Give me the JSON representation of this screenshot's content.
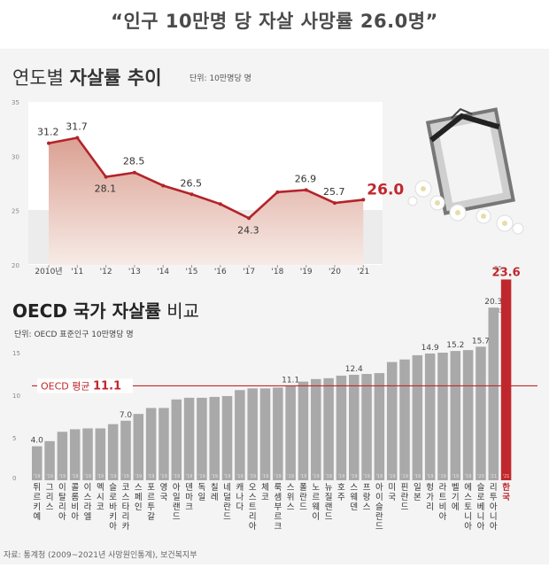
{
  "headline": "“인구 10만명 당 자살 사망률 26.0명”",
  "trend_chart": {
    "title_light": "연도별 ",
    "title_bold": "자살률 추이",
    "unit": "단위: 10만명당 명"
  },
  "oecd_chart": {
    "title_bold": "OECD 국가 자살률",
    "title_light": " 비교",
    "unit": "단위: OECD 표준인구 10만명당 명",
    "avg_label": "OECD 평균",
    "avg_value": "11.1"
  },
  "source": "자료: 통계청 (2009~2021년 사망원인통계), 보건복지부",
  "colors": {
    "highlight": "#c0272d",
    "bar": "#a9a9a9",
    "line": "#b3232a",
    "area_top": "#dba093",
    "area_bottom": "#f7ebe6"
  },
  "chart_data": [
    {
      "type": "area",
      "x": [
        "2010년",
        "'11",
        "'12",
        "'13",
        "'14",
        "'15",
        "'16",
        "'17",
        "'18",
        "'19",
        "'20",
        "'21"
      ],
      "values": [
        31.2,
        31.7,
        28.1,
        28.5,
        null,
        26.5,
        null,
        24.3,
        null,
        26.9,
        25.7,
        26.0
      ],
      "estimated_values": [
        31.2,
        31.7,
        28.1,
        28.5,
        27.3,
        26.5,
        25.6,
        24.3,
        26.7,
        26.9,
        25.7,
        26.0
      ],
      "labels": [
        "31.2",
        "31.7",
        "28.1",
        "28.5",
        "",
        "26.5",
        "",
        "24.3",
        "",
        "26.9",
        "25.7",
        "26.0"
      ],
      "yticks": [
        "20",
        "25",
        "30",
        "35"
      ],
      "ylim": [
        20,
        35
      ],
      "highlight_index": 11
    },
    {
      "type": "bar",
      "categories": [
        "튀르키예",
        "그리스",
        "이탈리아",
        "콜롬비아",
        "이스라엘",
        "멕시코",
        "슬로바키아",
        "코스타리카",
        "스페인",
        "포르투갈",
        "영국",
        "아일랜드",
        "덴마크",
        "독일",
        "칠레",
        "네덜란드",
        "캐나다",
        "오스트리아",
        "체코",
        "룩셈부르크",
        "스위스",
        "폴란드",
        "노르웨이",
        "뉴질랜드",
        "호주",
        "스웨덴",
        "프랑스",
        "아이슬란드",
        "미국",
        "핀란드",
        "일본",
        "헝가리",
        "라트비아",
        "벨기에",
        "에스토니아",
        "슬로베니아",
        "리투아니아",
        "한국"
      ],
      "values": [
        4.0,
        4.6,
        5.7,
        6.0,
        6.1,
        6.1,
        6.6,
        7.0,
        7.8,
        8.5,
        8.5,
        9.5,
        9.7,
        9.7,
        9.8,
        9.9,
        10.6,
        10.8,
        10.8,
        10.9,
        11.1,
        11.6,
        11.9,
        12.0,
        12.3,
        12.4,
        12.5,
        12.6,
        13.9,
        14.2,
        14.7,
        14.9,
        15.0,
        15.2,
        15.3,
        15.7,
        20.3,
        23.6
      ],
      "value_labels": [
        "4.0",
        "",
        "",
        "",
        "",
        "",
        "",
        "7.0",
        "",
        "",
        "",
        "",
        "",
        "",
        "",
        "",
        "",
        "",
        "",
        "",
        "11.1",
        "",
        "",
        "",
        "",
        "12.4",
        "",
        "",
        "",
        "",
        "",
        "14.9",
        "",
        "15.2",
        "",
        "15.7",
        "20.3",
        "23.6"
      ],
      "year_labels": [
        "'19",
        "'19",
        "'19",
        "'19",
        "'19",
        "'19",
        "'19",
        "'19",
        "'19",
        "'19",
        "'19",
        "'19",
        "'19",
        "'19",
        "'19",
        "'19",
        "'19",
        "'19",
        "'19",
        "'19",
        "'19",
        "'19",
        "'19",
        "'19",
        "'19",
        "'19",
        "'19",
        "'19",
        "'19",
        "'19",
        "'19",
        "'19",
        "'19",
        "'19",
        "'19",
        "'20",
        "'21",
        "'21"
      ],
      "yticks": [
        "0",
        "5",
        "10",
        "15",
        "20",
        "25"
      ],
      "ylim": [
        0,
        25
      ],
      "average": 11.1,
      "highlight_index": 37
    }
  ]
}
